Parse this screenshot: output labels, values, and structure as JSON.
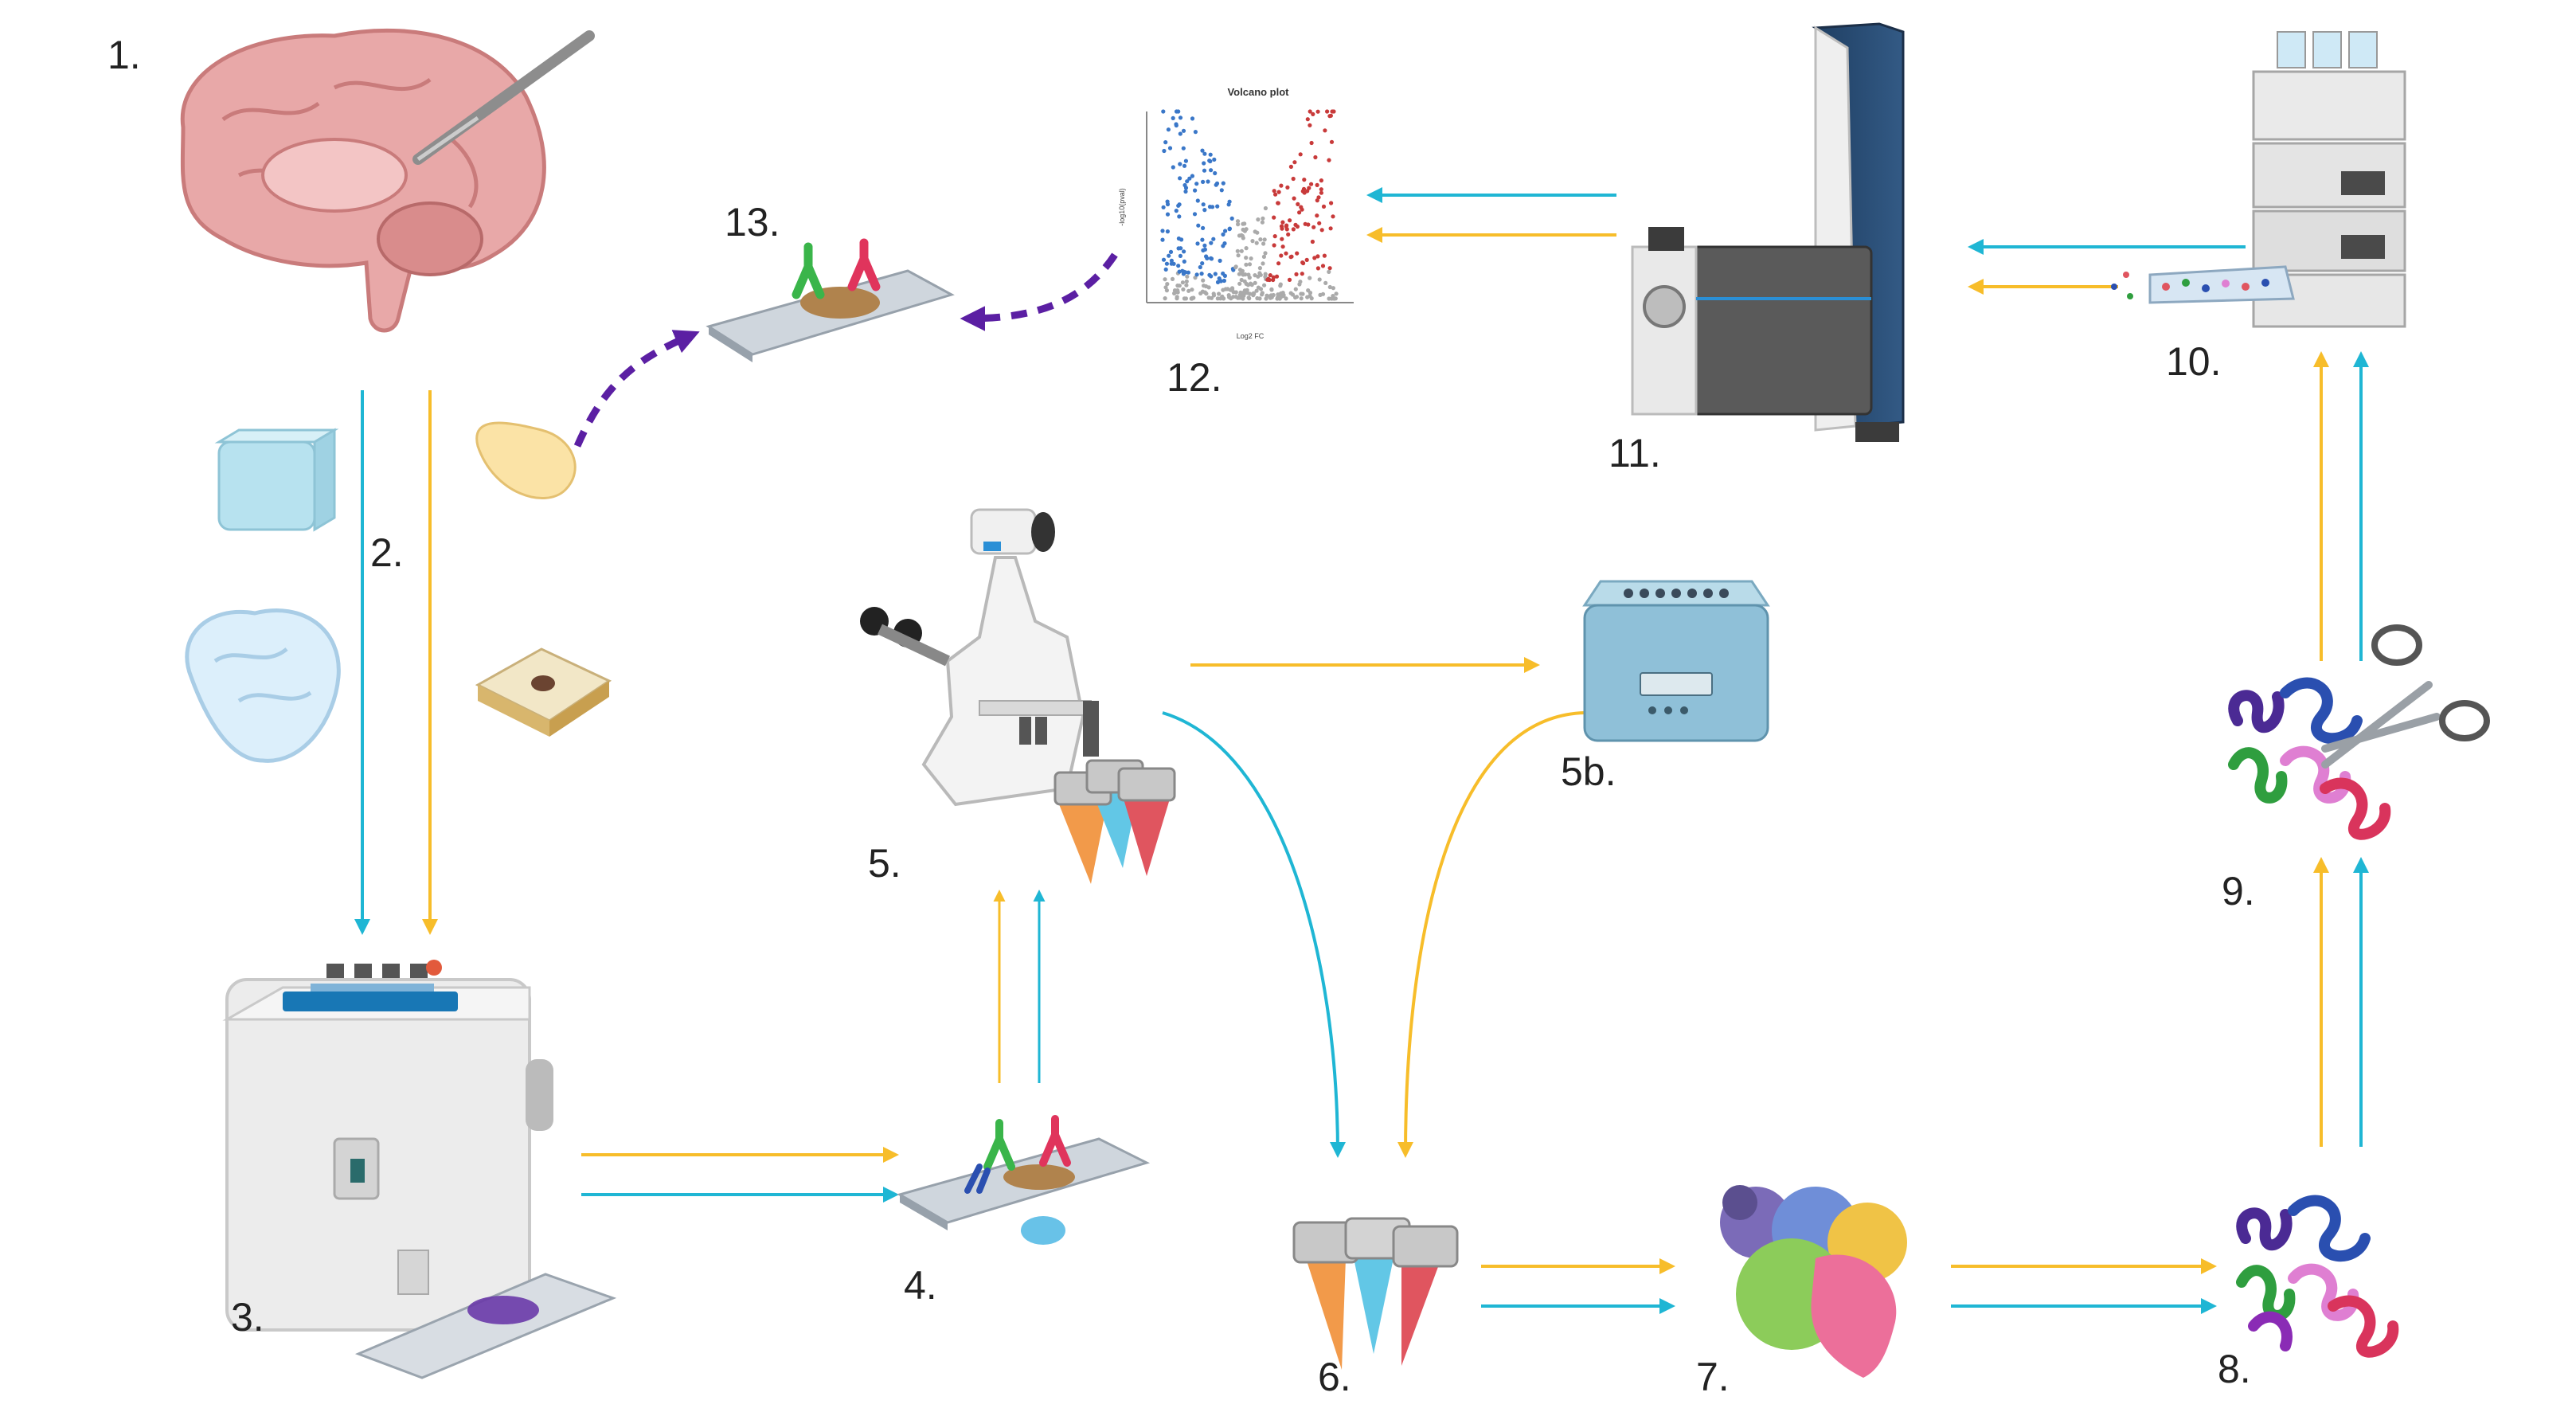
{
  "steps": {
    "s1": "1.",
    "s2": "2.",
    "s3": "3.",
    "s4": "4.",
    "s5": "5.",
    "s5b": "5b.",
    "s6": "6.",
    "s7": "7.",
    "s8": "8.",
    "s9": "9.",
    "s10": "10.",
    "s11": "11.",
    "s12": "12.",
    "s13": "13."
  },
  "volcano": {
    "title": "Volcano plot",
    "xlabel": "Log2 FC",
    "ylabel": "-log10(pval)"
  },
  "colors": {
    "cyan_flow": "#1fb6d4",
    "yellow_flow": "#f7bd2a",
    "purple_flow": "#5b1fa3",
    "upregulated": "#c83a3a",
    "downregulated": "#3a77c8",
    "not_significant": "#aaaaaa"
  },
  "icons": {
    "brain": "brain-dissection-icon",
    "ice": "ice-cube-icon",
    "frozen_brain": "frozen-brain-icon",
    "drop": "fixative-drop-icon",
    "block": "paraffin-block-icon",
    "cryostat": "cryostat-icon",
    "slide_stain": "immunostained-slide-icon",
    "microscope": "laser-capture-microscope-icon",
    "heat_block": "heat-block-icon",
    "tubes": "collection-tubes-icon",
    "proteins": "protein-lysate-icon",
    "denatured": "denatured-protein-icon",
    "digestion": "tryptic-digestion-icon",
    "lc": "liquid-chromatography-icon",
    "ms": "mass-spectrometer-icon",
    "plot": "volcano-plot-icon",
    "validation": "validation-slide-icon"
  }
}
